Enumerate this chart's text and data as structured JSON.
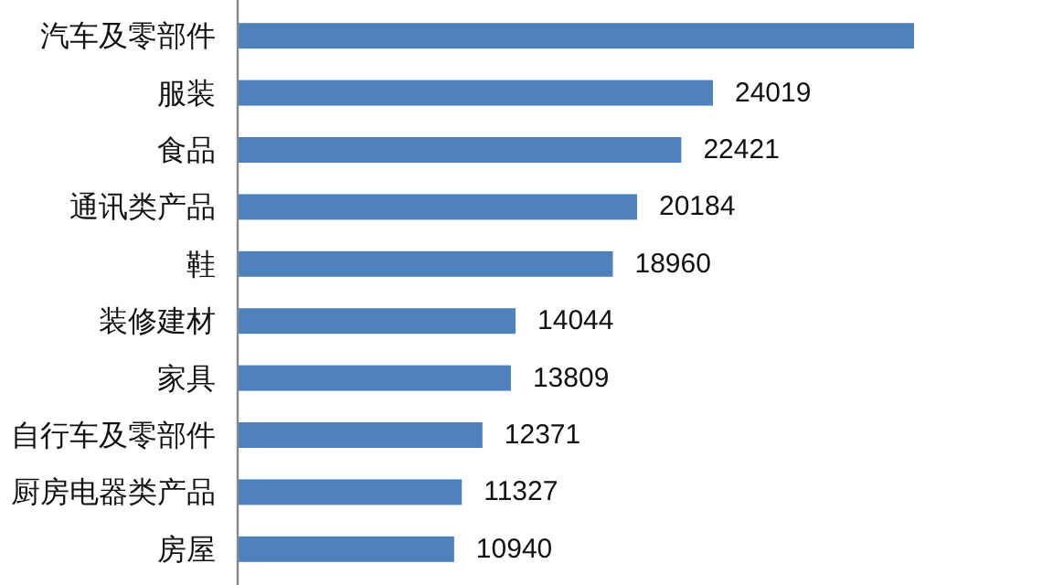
{
  "chart_data": {
    "type": "bar",
    "orientation": "horizontal",
    "categories": [
      "汽车及零部件",
      "服装",
      "食品",
      "通讯类产品",
      "鞋",
      "装修建材",
      "家具",
      "自行车及零部件",
      "厨房电器类产品",
      "房屋"
    ],
    "values": [
      34180,
      24019,
      22421,
      20184,
      18960,
      14044,
      13809,
      12371,
      11327,
      10940
    ],
    "value_labels": [
      null,
      "24019",
      "22421",
      "20184",
      "18960",
      "14044",
      "13809",
      "12371",
      "11327",
      "10940"
    ],
    "color": "#4f81bd"
  }
}
